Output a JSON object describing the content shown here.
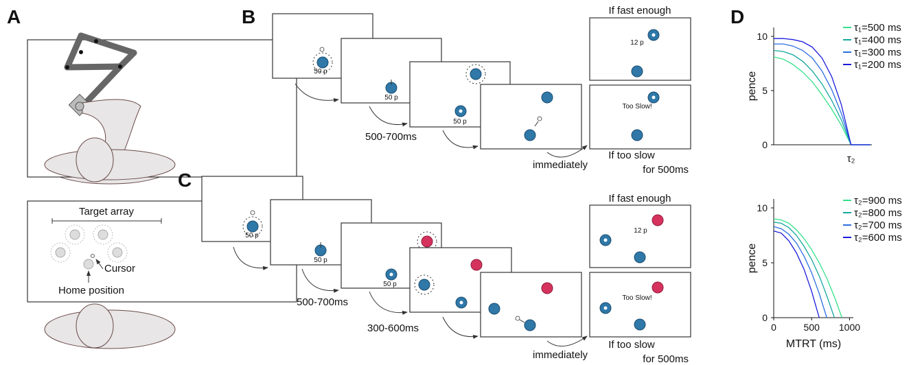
{
  "panels": {
    "a": {
      "label": "A",
      "target_array": "Target array",
      "cursor": "Cursor",
      "home_position": "Home position"
    },
    "b": {
      "label": "B",
      "reward_labels": [
        "50 p",
        "50 p",
        "50 p"
      ],
      "fast_reward": "12 p",
      "too_slow": "Too Slow!",
      "if_fast": "If fast enough",
      "if_slow": "If too slow",
      "slow_duration": "for 500ms",
      "delay": "500-700ms",
      "immediately": "immediately"
    },
    "c": {
      "label": "C",
      "reward_labels": [
        "50 p",
        "50 p",
        "50 p"
      ],
      "fast_reward": "12 p",
      "too_slow": "Too Slow!",
      "if_fast": "If fast enough",
      "if_slow": "If too slow",
      "slow_duration": "for 500ms",
      "delay_1": "500-700ms",
      "delay_2": "300-600ms",
      "immediately": "immediately"
    },
    "d": {
      "label": "D",
      "charts": [
        {
          "type": "line",
          "y_label": "pence",
          "x_label": "τ₂",
          "x": [
            0,
            0.125,
            0.25,
            0.375,
            0.5,
            0.625,
            0.75,
            0.875,
            1,
            1.125,
            1.25
          ],
          "xlim": [
            0,
            1.27
          ],
          "ylim": [
            0,
            10
          ],
          "yticks": [
            0,
            5,
            10
          ],
          "series": [
            {
              "name": "τ₁=500 ms",
              "color": "#33e08a",
              "values": [
                8.1,
                7.9,
                7.4,
                6.7,
                5.8,
                4.6,
                3.3,
                1.8,
                0,
                0,
                0
              ]
            },
            {
              "name": "τ₁=400 ms",
              "color": "#14a8a0",
              "values": [
                8.7,
                8.6,
                8.3,
                7.7,
                6.8,
                5.6,
                4.1,
                2.3,
                0,
                0,
                0
              ]
            },
            {
              "name": "τ₁=300 ms",
              "color": "#2a6ee0",
              "values": [
                9.3,
                9.3,
                9.1,
                8.7,
                8.0,
                6.8,
                5.1,
                2.9,
                0,
                0,
                0
              ]
            },
            {
              "name": "τ₁=200 ms",
              "color": "#1a1adb",
              "values": [
                9.8,
                9.8,
                9.7,
                9.5,
                9.0,
                8.0,
                6.3,
                3.7,
                0,
                0,
                0
              ]
            }
          ]
        },
        {
          "type": "line",
          "y_label": "pence",
          "x_label": "MTRT (ms)",
          "x": [
            0,
            100,
            200,
            300,
            400,
            500,
            600,
            700,
            800,
            900
          ],
          "xlim": [
            0,
            1050
          ],
          "ylim": [
            0,
            10
          ],
          "xticks": [
            0,
            500,
            1000
          ],
          "yticks": [
            0,
            5,
            10
          ],
          "series": [
            {
              "name": "τ₂=900 ms",
              "color": "#33e08a",
              "values": [
                9,
                8.9,
                8.6,
                8.0,
                7.2,
                6.2,
                5.0,
                3.6,
                1.9,
                0
              ]
            },
            {
              "name": "τ₂=800 ms",
              "color": "#14a8a0",
              "values": [
                8.7,
                8.6,
                8.2,
                7.5,
                6.5,
                5.3,
                3.8,
                2.0,
                0,
                null
              ]
            },
            {
              "name": "τ₂=700 ms",
              "color": "#2a6ee0",
              "values": [
                8.3,
                8.1,
                7.6,
                6.8,
                5.6,
                4.1,
                2.2,
                0,
                null,
                null
              ]
            },
            {
              "name": "τ₂=600 ms",
              "color": "#1a1adb",
              "values": [
                7.9,
                7.7,
                7.0,
                5.9,
                4.4,
                2.4,
                0,
                null,
                null,
                null
              ]
            }
          ]
        }
      ]
    }
  }
}
